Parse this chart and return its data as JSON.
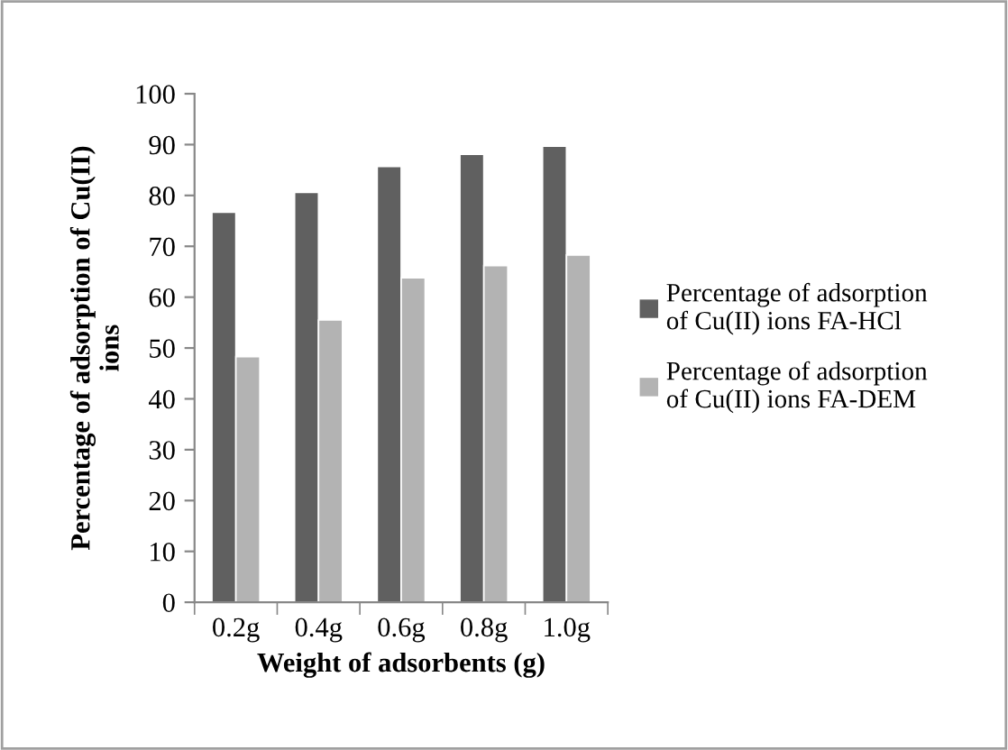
{
  "chart_data": {
    "type": "bar",
    "xlabel": "Weight of adsorbents (g)",
    "ylabel": "Percentage of adsorption of Cu(II) ions",
    "categories": [
      "0.2g",
      "0.4g",
      "0.6g",
      "0.8g",
      "1.0g"
    ],
    "series": [
      {
        "name": "Percentage of adsorption of Cu(II) ions FA-HCl",
        "color": "#606060",
        "values": [
          76.7,
          80.6,
          85.7,
          88.1,
          89.7
        ]
      },
      {
        "name": "Percentage of adsorption of Cu(II) ions FA-DEM",
        "color": "#b3b3b3",
        "values": [
          48.3,
          55.5,
          63.8,
          66.2,
          68.3
        ]
      }
    ],
    "ylim": [
      0,
      100
    ],
    "yticks": [
      0,
      10,
      20,
      30,
      40,
      50,
      60,
      70,
      80,
      90,
      100
    ],
    "grid": false,
    "legend": "right"
  }
}
